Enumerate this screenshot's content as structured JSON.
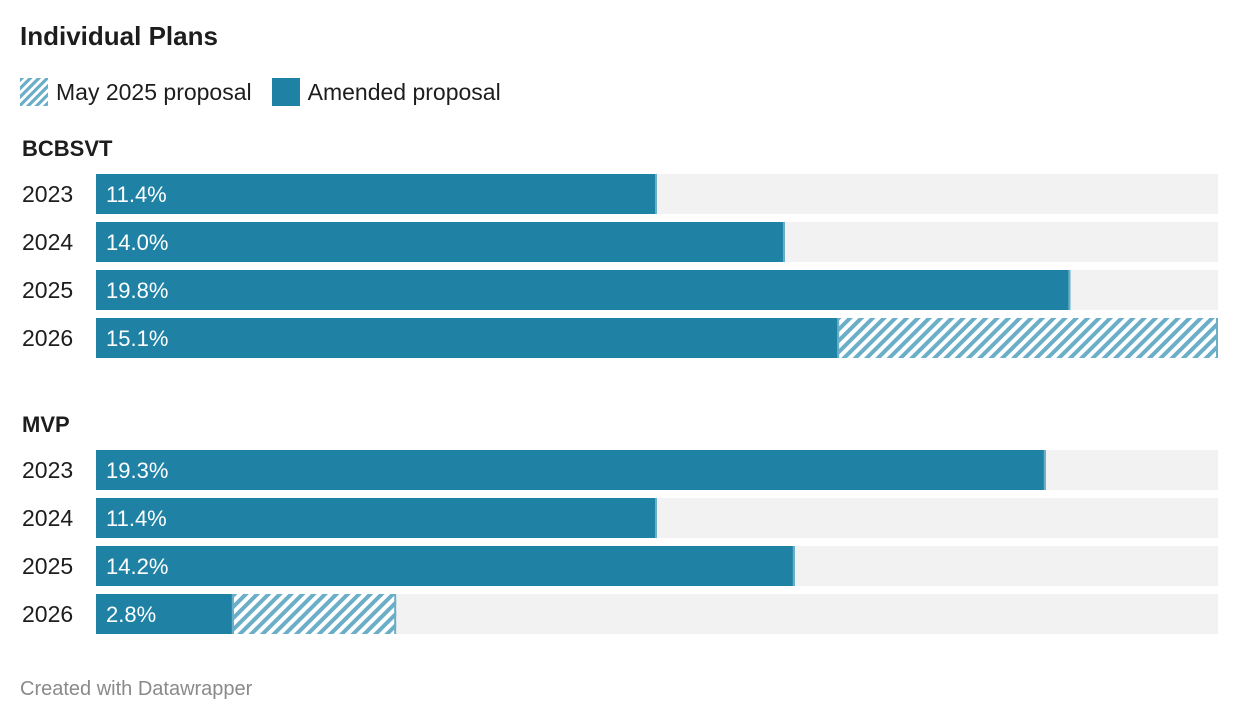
{
  "title": "Individual Plans",
  "legend": [
    {
      "label": "May 2025 proposal",
      "style": "hatched",
      "color": "#6aaec8"
    },
    {
      "label": "Amended proposal",
      "style": "solid",
      "color": "#1f82a5"
    }
  ],
  "colors": {
    "amended": "#1f82a5",
    "may_proposal": "#6aaec8",
    "track": "#f2f2f2",
    "bar_label": "#ffffff"
  },
  "footer": "Created with Datawrapper",
  "chart_data": {
    "type": "bar",
    "orientation": "horizontal",
    "xlim": [
      0,
      22.8
    ],
    "groups": [
      {
        "name": "BCBSVT",
        "rows": [
          {
            "year": "2023",
            "label": "11.4%",
            "amended": 11.4,
            "may_proposal": null
          },
          {
            "year": "2024",
            "label": "14.0%",
            "amended": 14.0,
            "may_proposal": null
          },
          {
            "year": "2025",
            "label": "19.8%",
            "amended": 19.8,
            "may_proposal": null
          },
          {
            "year": "2026",
            "label": "15.1%",
            "amended": 15.1,
            "may_proposal": 22.8
          }
        ]
      },
      {
        "name": "MVP",
        "rows": [
          {
            "year": "2023",
            "label": "19.3%",
            "amended": 19.3,
            "may_proposal": null
          },
          {
            "year": "2024",
            "label": "11.4%",
            "amended": 11.4,
            "may_proposal": null
          },
          {
            "year": "2025",
            "label": "14.2%",
            "amended": 14.2,
            "may_proposal": null
          },
          {
            "year": "2026",
            "label": "2.8%",
            "amended": 2.8,
            "may_proposal": 6.1
          }
        ]
      }
    ]
  }
}
